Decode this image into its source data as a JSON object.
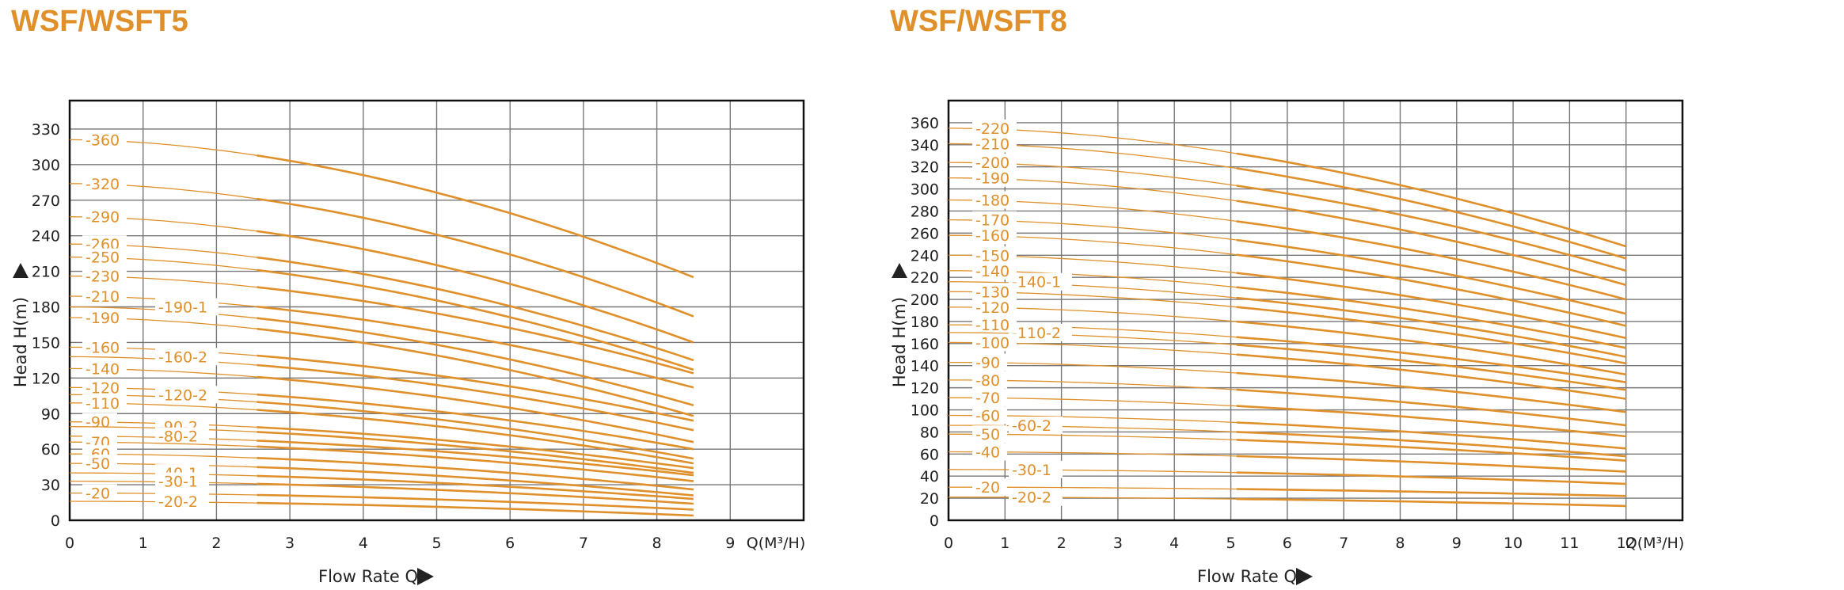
{
  "colors": {
    "title": "#e0902a",
    "curve": "#e0902a",
    "label": "#e0902a",
    "grid": "#777777",
    "frame": "#111111",
    "text": "#222222"
  },
  "chart_data": [
    {
      "type": "line",
      "title": "WSF/WSFT5",
      "xlabel": "Flow Rate Q",
      "x_unit": "Q(M³/H)",
      "ylabel": "Head H(m)",
      "xlim": [
        0,
        10
      ],
      "ylim": [
        0,
        354
      ],
      "x_ticks": [
        "0",
        "1",
        "2",
        "3",
        "4",
        "5",
        "6",
        "7",
        "8",
        "9"
      ],
      "y_ticks": [
        "0",
        "30",
        "60",
        "90",
        "120",
        "150",
        "180",
        "210",
        "240",
        "270",
        "300",
        "330"
      ],
      "grid": true,
      "series": [
        {
          "name": "-360",
          "start": 321,
          "end": 205
        },
        {
          "name": "-320",
          "start": 284,
          "end": 172
        },
        {
          "name": "-290",
          "start": 256,
          "end": 150
        },
        {
          "name": "-260",
          "start": 233,
          "end": 135
        },
        {
          "name": "-250",
          "start": 222,
          "end": 127
        },
        {
          "name": "-230",
          "start": 206,
          "end": 124
        },
        {
          "name": "-210",
          "start": 189,
          "end": 112
        },
        {
          "name": "-190-1",
          "start": 180,
          "end": 97
        },
        {
          "name": "-190",
          "start": 171,
          "end": 88
        },
        {
          "name": "-160",
          "start": 146,
          "end": 84
        },
        {
          "name": "-160-2",
          "start": 138,
          "end": 76
        },
        {
          "name": "-140",
          "start": 128,
          "end": 66
        },
        {
          "name": "-120",
          "start": 112,
          "end": 60
        },
        {
          "name": "-120-2",
          "start": 106,
          "end": 52
        },
        {
          "name": "-110",
          "start": 99,
          "end": 48
        },
        {
          "name": "-90",
          "start": 83,
          "end": 44
        },
        {
          "name": "-90-2",
          "start": 79,
          "end": 40
        },
        {
          "name": "-80-2",
          "start": 71,
          "end": 38
        },
        {
          "name": "-70",
          "start": 66,
          "end": 33
        },
        {
          "name": "-60",
          "start": 56,
          "end": 26
        },
        {
          "name": "-50",
          "start": 48,
          "end": 21
        },
        {
          "name": "-40-1",
          "start": 40,
          "end": 18
        },
        {
          "name": "-30-1",
          "start": 33,
          "end": 14
        },
        {
          "name": "-20",
          "start": 23,
          "end": 9
        },
        {
          "name": "-20-2",
          "start": 16,
          "end": 4
        }
      ]
    },
    {
      "type": "line",
      "title": "WSF/WSFT8",
      "xlabel": "Flow Rate Q",
      "x_unit": "Q(M³/H)",
      "ylabel": "Head H(m)",
      "xlim": [
        0,
        13
      ],
      "ylim": [
        0,
        380
      ],
      "x_ticks": [
        "0",
        "1",
        "2",
        "3",
        "4",
        "5",
        "6",
        "7",
        "8",
        "9",
        "10",
        "11",
        "12"
      ],
      "y_ticks": [
        "0",
        "20",
        "40",
        "60",
        "80",
        "100",
        "120",
        "140",
        "160",
        "180",
        "200",
        "220",
        "240",
        "260",
        "280",
        "300",
        "320",
        "340",
        "360"
      ],
      "grid": true,
      "series": [
        {
          "name": "-220",
          "start": 355,
          "end": 248
        },
        {
          "name": "-210",
          "start": 341,
          "end": 237
        },
        {
          "name": "-200",
          "start": 324,
          "end": 226
        },
        {
          "name": "-190",
          "start": 310,
          "end": 213
        },
        {
          "name": "-180",
          "start": 290,
          "end": 200
        },
        {
          "name": "-170",
          "start": 272,
          "end": 187
        },
        {
          "name": "-160",
          "start": 258,
          "end": 176
        },
        {
          "name": "-150",
          "start": 240,
          "end": 165
        },
        {
          "name": "-140",
          "start": 226,
          "end": 156
        },
        {
          "name": "-140-1",
          "start": 216,
          "end": 148
        },
        {
          "name": "-130",
          "start": 207,
          "end": 142
        },
        {
          "name": "-120",
          "start": 193,
          "end": 132
        },
        {
          "name": "-110",
          "start": 177,
          "end": 125
        },
        {
          "name": "-110-2",
          "start": 170,
          "end": 118
        },
        {
          "name": "-100",
          "start": 161,
          "end": 110
        },
        {
          "name": "-90",
          "start": 143,
          "end": 98
        },
        {
          "name": "-80",
          "start": 127,
          "end": 86
        },
        {
          "name": "-70",
          "start": 111,
          "end": 76
        },
        {
          "name": "-60",
          "start": 95,
          "end": 65
        },
        {
          "name": "-60-2",
          "start": 86,
          "end": 58
        },
        {
          "name": "-50",
          "start": 78,
          "end": 54
        },
        {
          "name": "-40",
          "start": 62,
          "end": 44
        },
        {
          "name": "-30-1",
          "start": 46,
          "end": 33
        },
        {
          "name": "-20",
          "start": 30,
          "end": 22
        },
        {
          "name": "-20-2",
          "start": 21,
          "end": 13
        }
      ]
    }
  ]
}
